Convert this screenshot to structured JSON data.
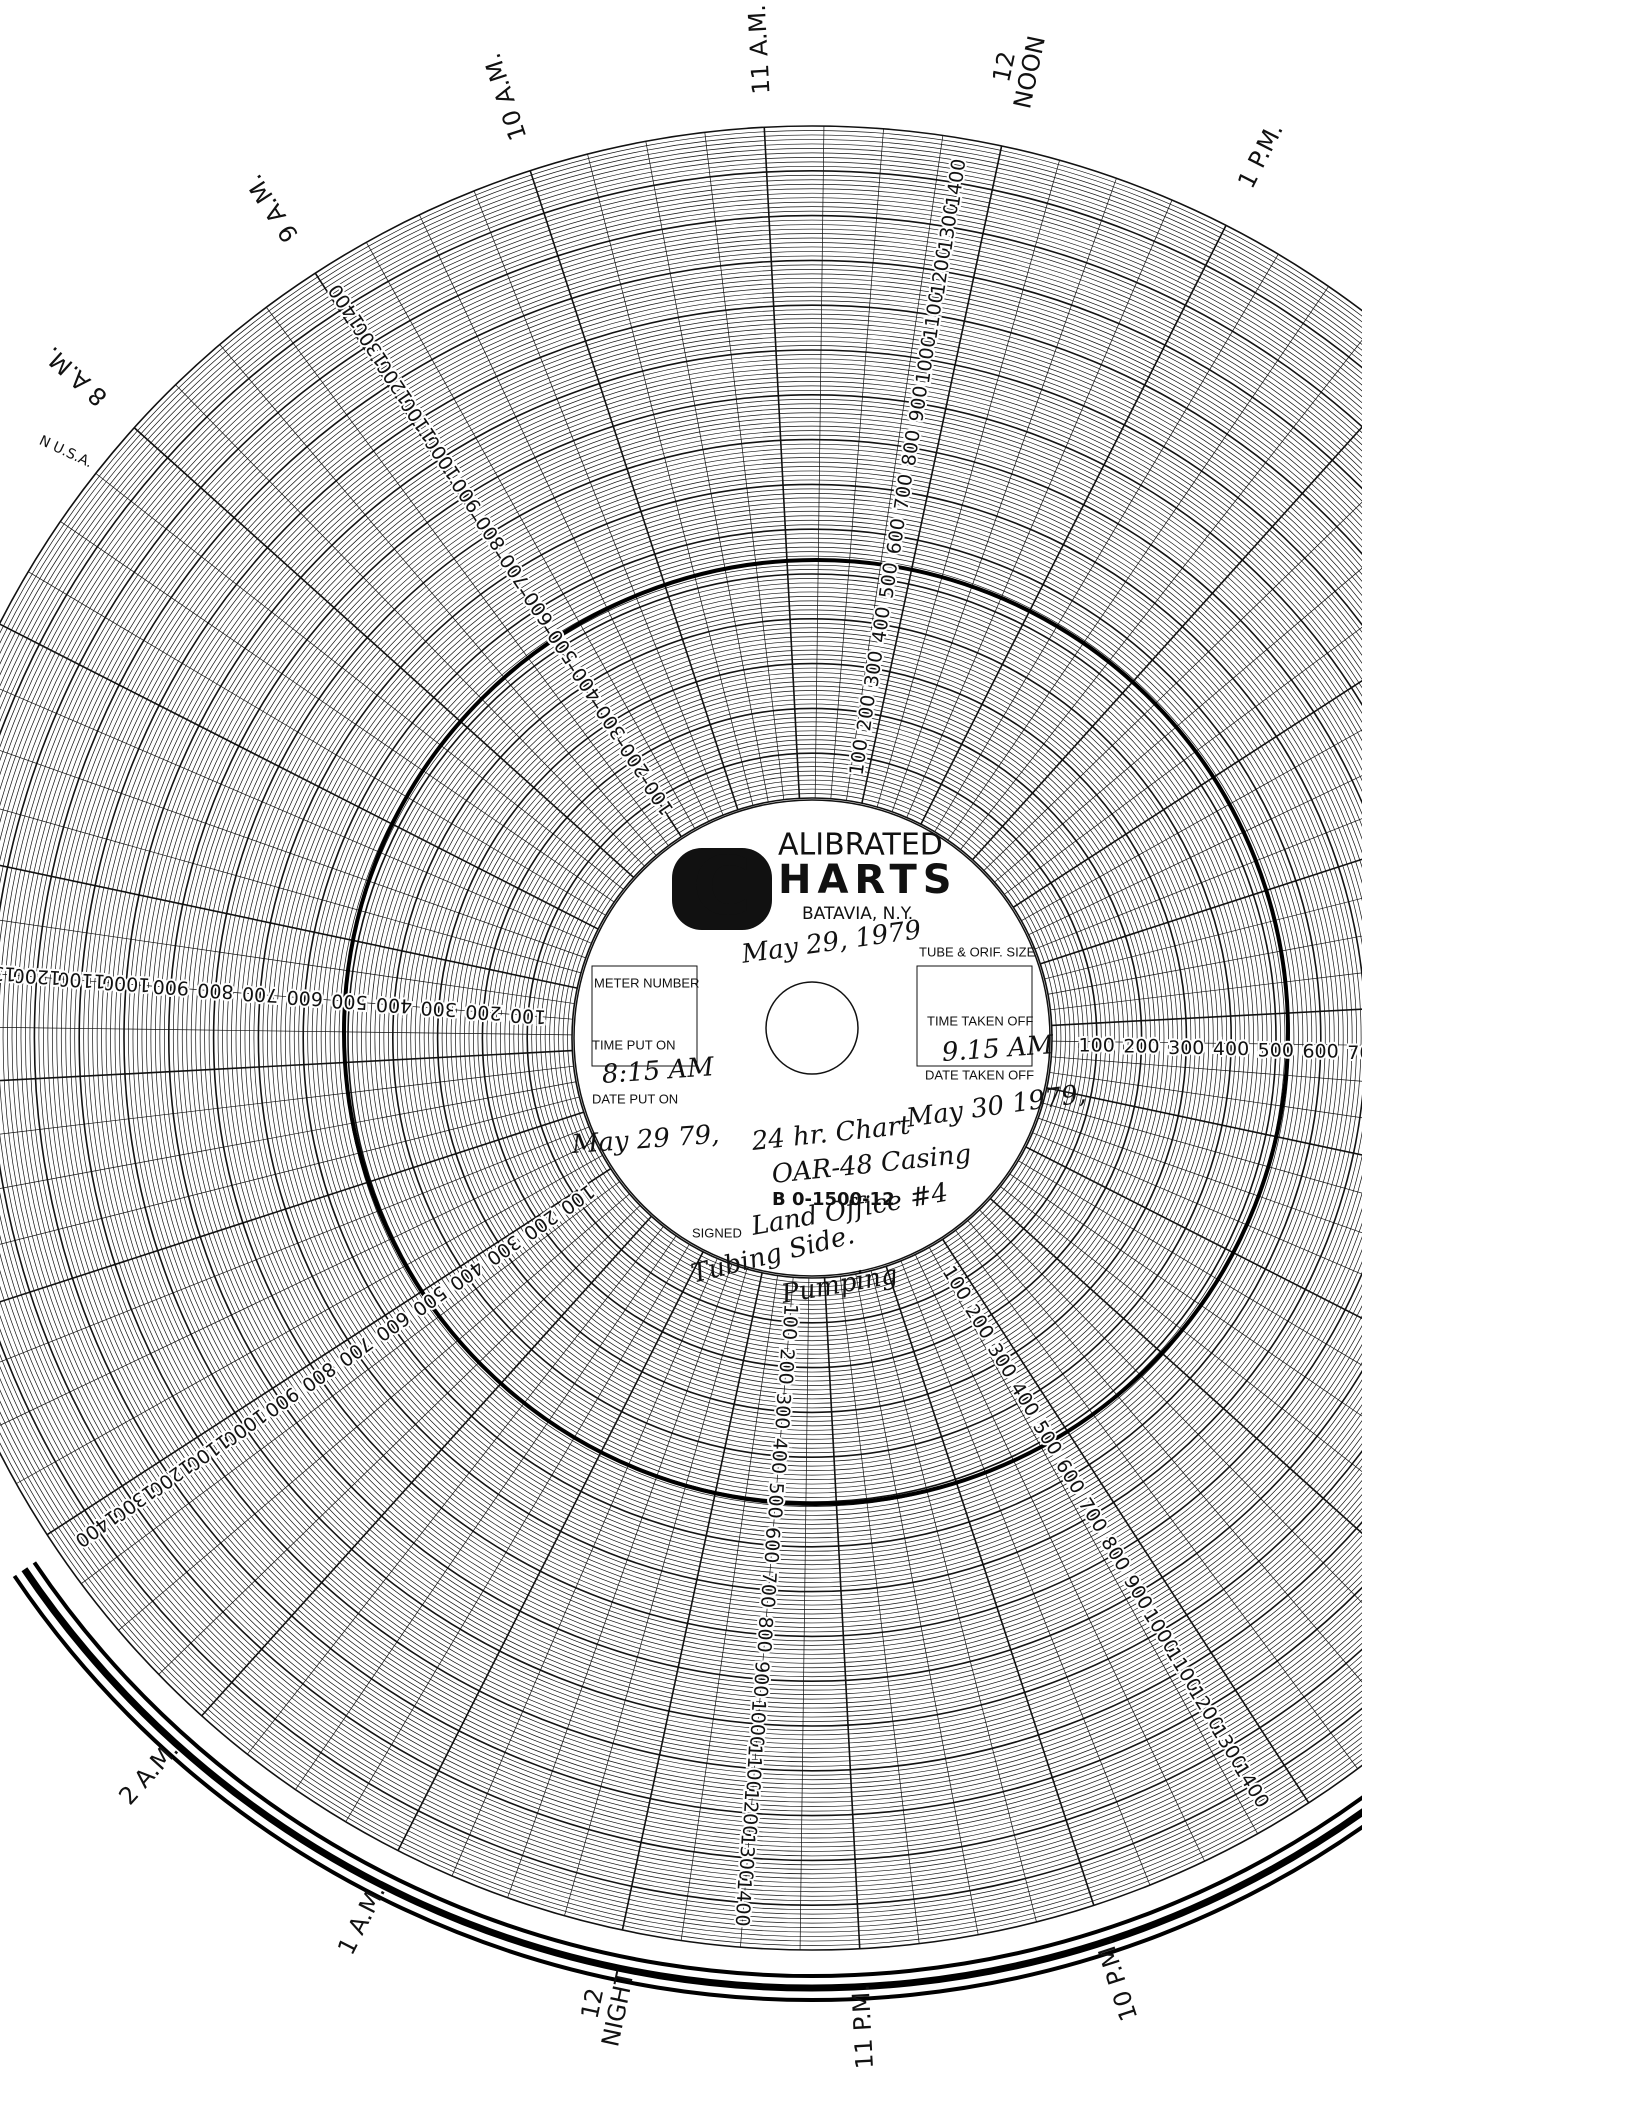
{
  "edge_text": "N U.S.A.",
  "time_labels": [
    "8 A.M.",
    "9 A.M.",
    "10 A.M.",
    "11 A.M.",
    [
      "12",
      "NOON"
    ],
    "1 P.M.",
    "10 P.M.",
    "11 P.M.",
    [
      "12",
      "NIGHT"
    ],
    "1 A.M.",
    "2 A.M."
  ],
  "scale_labels": [
    "100",
    "200",
    "300",
    "400",
    "500",
    "600",
    "700",
    "800",
    "900",
    "1000",
    "1100",
    "1200",
    "1300",
    "1400"
  ],
  "label": {
    "brand_initial": "C",
    "brand_line1": "ALIBRATED",
    "brand_line2": "HARTS",
    "location": "BATAVIA, N.Y.",
    "meter_number": "METER NUMBER",
    "time_put_on": "TIME PUT ON",
    "date_put_on": "DATE PUT ON",
    "tube_orif_size": "TUBE & ORIF. SIZE",
    "time_taken_off": "TIME TAKEN OFF",
    "date_taken_off": "DATE TAKEN OFF",
    "signed": "SIGNED",
    "chart_number": "B 0-1500-12"
  },
  "handwriting": {
    "date_top": "May 29, 1979",
    "time_on": "8:15 AM",
    "time_off": "9.15 AM",
    "date_on": "May 29 79,",
    "duration": "24 hr. Chart",
    "date_off": "May 30 1979,",
    "well": "OAR-48 Casing",
    "signer": "Land Office #4",
    "note1": "Tubing Side.",
    "note2": "Pumping"
  }
}
